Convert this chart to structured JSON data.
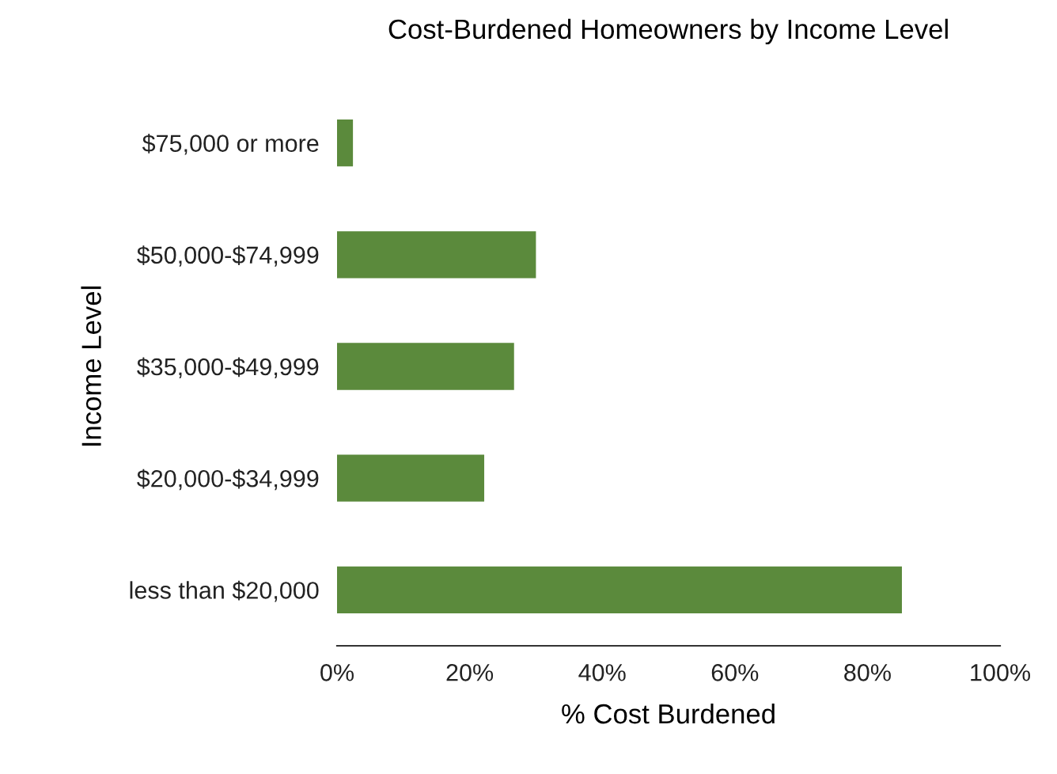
{
  "chart_data": {
    "type": "bar",
    "orientation": "horizontal",
    "title": "Cost-Burdened Homeowners by Income Level",
    "xlabel": "% Cost Burdened",
    "ylabel": "Income Level",
    "categories": [
      "$75,000 or more",
      "$50,000-$74,999",
      "$35,000-$49,999",
      "$20,000-$34,999",
      "less than $20,000"
    ],
    "values": [
      2.4,
      30,
      26.7,
      22.2,
      85.2
    ],
    "color": "#5b8a3c",
    "xlim": [
      0,
      100
    ],
    "xticks": [
      {
        "value": 0,
        "label": "0%"
      },
      {
        "value": 20,
        "label": "20%"
      },
      {
        "value": 40,
        "label": "40%"
      },
      {
        "value": 60,
        "label": "60%"
      },
      {
        "value": 80,
        "label": "80%"
      },
      {
        "value": 100,
        "label": "100%"
      }
    ],
    "grid": false,
    "legend": false
  }
}
